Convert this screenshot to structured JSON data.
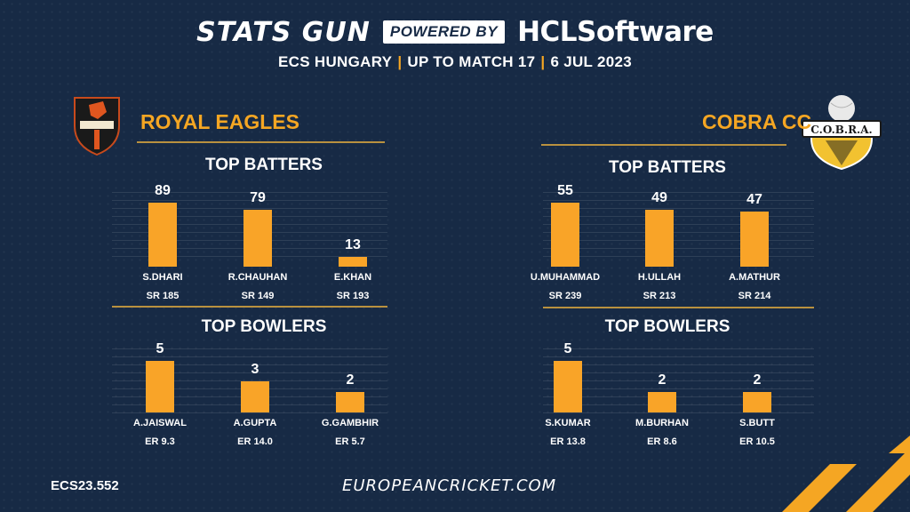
{
  "header": {
    "brand": "STATS GUN",
    "powered": "POWERED BY",
    "partner_a": "HCL",
    "partner_b": "Software",
    "competition": "ECS HUNGARY",
    "scope": "UP TO MATCH 17",
    "date": "6 JUL 2023"
  },
  "logos": {
    "cobra": "C.O.B.R.A."
  },
  "teams": [
    {
      "name": "ROYAL EAGLES",
      "charts": [
        {
          "title": "TOP BATTERS",
          "players": [
            "S.DHARI",
            "R.CHAUHAN",
            "E.KHAN"
          ],
          "values": [
            89,
            79,
            13
          ],
          "stats": [
            "SR 185",
            "SR 149",
            "SR 193"
          ]
        },
        {
          "title": "TOP BOWLERS",
          "players": [
            "A.JAISWAL",
            "A.GUPTA",
            "G.GAMBHIR"
          ],
          "values": [
            5,
            3,
            2
          ],
          "stats": [
            "ER 9.3",
            "ER 14.0",
            "ER 5.7"
          ]
        }
      ]
    },
    {
      "name": "COBRA CC",
      "charts": [
        {
          "title": "TOP BATTERS",
          "players": [
            "U.MUHAMMAD",
            "H.ULLAH",
            "A.MATHUR"
          ],
          "values": [
            55,
            49,
            47
          ],
          "stats": [
            "SR 239",
            "SR 213",
            "SR 214"
          ]
        },
        {
          "title": "TOP BOWLERS",
          "players": [
            "S.KUMAR",
            "M.BURHAN",
            "S.BUTT"
          ],
          "values": [
            5,
            2,
            2
          ],
          "stats": [
            "ER 13.8",
            "ER 8.6",
            "ER 10.5"
          ]
        }
      ]
    }
  ],
  "chart_data": [
    {
      "type": "bar",
      "title": "TOP BATTERS",
      "categories": [
        "S.DHARI",
        "R.CHAUHAN",
        "E.KHAN"
      ],
      "values": [
        89,
        79,
        13
      ]
    },
    {
      "type": "bar",
      "title": "TOP BOWLERS",
      "categories": [
        "A.JAISWAL",
        "A.GUPTA",
        "G.GAMBHIR"
      ],
      "values": [
        5,
        3,
        2
      ]
    },
    {
      "type": "bar",
      "title": "TOP BATTERS",
      "categories": [
        "U.MUHAMMAD",
        "H.ULLAH",
        "A.MATHUR"
      ],
      "values": [
        55,
        49,
        47
      ]
    },
    {
      "type": "bar",
      "title": "TOP BOWLERS",
      "categories": [
        "S.KUMAR",
        "M.BURHAN",
        "S.BUTT"
      ],
      "values": [
        5,
        2,
        2
      ]
    }
  ],
  "footer": {
    "code": "ECS23.552",
    "website": "EUROPEANCRICKET.COM"
  },
  "colors": {
    "bar": "#f9a428",
    "accent": "#f5a623",
    "background": "#172a45"
  }
}
